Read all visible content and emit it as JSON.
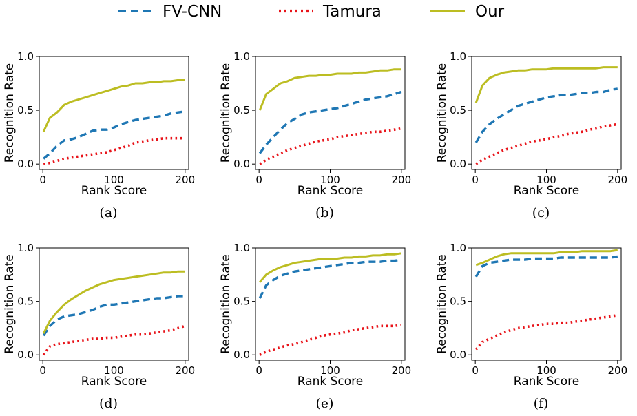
{
  "legend": [
    {
      "label": "FV-CNN",
      "color": "#1f77b4",
      "style": "dashed"
    },
    {
      "label": "Tamura",
      "color": "#e8141a",
      "style": "dotted"
    },
    {
      "label": "Our",
      "color": "#bcbd22",
      "style": "solid"
    }
  ],
  "chart_data": [
    {
      "type": "line",
      "caption": "(a)",
      "xlabel": "Rank Score",
      "ylabel": "Recognition Rate",
      "xlim": [
        -5,
        205
      ],
      "ylim": [
        -0.05,
        1.0
      ],
      "xticks": [
        0,
        100,
        200
      ],
      "yticks": [
        0.0,
        0.5,
        1.0
      ],
      "x": [
        1,
        10,
        20,
        30,
        40,
        50,
        60,
        70,
        80,
        90,
        100,
        110,
        120,
        130,
        140,
        150,
        160,
        170,
        180,
        190,
        200
      ],
      "series": [
        {
          "name": "FV-CNN",
          "values": [
            0.05,
            0.1,
            0.17,
            0.22,
            0.23,
            0.25,
            0.28,
            0.31,
            0.32,
            0.32,
            0.34,
            0.37,
            0.39,
            0.41,
            0.42,
            0.43,
            0.44,
            0.45,
            0.47,
            0.48,
            0.49
          ]
        },
        {
          "name": "Tamura",
          "values": [
            0.0,
            0.01,
            0.03,
            0.05,
            0.06,
            0.07,
            0.08,
            0.09,
            0.1,
            0.11,
            0.13,
            0.15,
            0.17,
            0.2,
            0.21,
            0.22,
            0.23,
            0.24,
            0.24,
            0.24,
            0.24
          ]
        },
        {
          "name": "Our",
          "values": [
            0.3,
            0.43,
            0.48,
            0.55,
            0.58,
            0.6,
            0.62,
            0.64,
            0.66,
            0.68,
            0.7,
            0.72,
            0.73,
            0.75,
            0.75,
            0.76,
            0.76,
            0.77,
            0.77,
            0.78,
            0.78
          ]
        }
      ]
    },
    {
      "type": "line",
      "caption": "(b)",
      "xlabel": "Rank Score",
      "ylabel": "Recognition Rate",
      "xlim": [
        -5,
        205
      ],
      "ylim": [
        -0.05,
        1.0
      ],
      "xticks": [
        0,
        100,
        200
      ],
      "yticks": [
        0.0,
        0.5,
        1.0
      ],
      "x": [
        1,
        10,
        20,
        30,
        40,
        50,
        60,
        70,
        80,
        90,
        100,
        110,
        120,
        130,
        140,
        150,
        160,
        170,
        180,
        190,
        200
      ],
      "series": [
        {
          "name": "FV-CNN",
          "values": [
            0.1,
            0.18,
            0.25,
            0.32,
            0.38,
            0.42,
            0.46,
            0.48,
            0.49,
            0.5,
            0.51,
            0.52,
            0.54,
            0.56,
            0.58,
            0.6,
            0.61,
            0.62,
            0.63,
            0.65,
            0.67
          ]
        },
        {
          "name": "Tamura",
          "values": [
            0.0,
            0.04,
            0.07,
            0.1,
            0.13,
            0.15,
            0.17,
            0.19,
            0.21,
            0.22,
            0.23,
            0.25,
            0.26,
            0.27,
            0.28,
            0.29,
            0.3,
            0.3,
            0.31,
            0.32,
            0.33
          ]
        },
        {
          "name": "Our",
          "values": [
            0.5,
            0.65,
            0.7,
            0.75,
            0.77,
            0.8,
            0.81,
            0.82,
            0.82,
            0.83,
            0.83,
            0.84,
            0.84,
            0.84,
            0.85,
            0.85,
            0.86,
            0.87,
            0.87,
            0.88,
            0.88
          ]
        }
      ]
    },
    {
      "type": "line",
      "caption": "(c)",
      "xlabel": "Rank Score",
      "ylabel": "Recognition Rate",
      "xlim": [
        -5,
        205
      ],
      "ylim": [
        -0.05,
        1.0
      ],
      "xticks": [
        0,
        100,
        200
      ],
      "yticks": [
        0.0,
        0.5,
        1.0
      ],
      "x": [
        1,
        10,
        20,
        30,
        40,
        50,
        60,
        70,
        80,
        90,
        100,
        110,
        120,
        130,
        140,
        150,
        160,
        170,
        180,
        190,
        200
      ],
      "series": [
        {
          "name": "FV-CNN",
          "values": [
            0.2,
            0.3,
            0.37,
            0.42,
            0.46,
            0.5,
            0.54,
            0.56,
            0.58,
            0.6,
            0.62,
            0.63,
            0.64,
            0.64,
            0.65,
            0.66,
            0.66,
            0.67,
            0.67,
            0.69,
            0.7
          ]
        },
        {
          "name": "Tamura",
          "values": [
            0.0,
            0.04,
            0.07,
            0.1,
            0.13,
            0.15,
            0.17,
            0.19,
            0.21,
            0.22,
            0.23,
            0.25,
            0.26,
            0.28,
            0.29,
            0.3,
            0.32,
            0.33,
            0.35,
            0.36,
            0.37
          ]
        },
        {
          "name": "Our",
          "values": [
            0.57,
            0.73,
            0.8,
            0.83,
            0.85,
            0.86,
            0.87,
            0.87,
            0.88,
            0.88,
            0.88,
            0.89,
            0.89,
            0.89,
            0.89,
            0.89,
            0.89,
            0.89,
            0.9,
            0.9,
            0.9
          ]
        }
      ]
    },
    {
      "type": "line",
      "caption": "(d)",
      "xlabel": "Rank Score",
      "ylabel": "Recognition Rate",
      "xlim": [
        -5,
        205
      ],
      "ylim": [
        -0.05,
        1.0
      ],
      "xticks": [
        0,
        100,
        200
      ],
      "yticks": [
        0.0,
        0.5,
        1.0
      ],
      "x": [
        1,
        10,
        20,
        30,
        40,
        50,
        60,
        70,
        80,
        90,
        100,
        110,
        120,
        130,
        140,
        150,
        160,
        170,
        180,
        190,
        200
      ],
      "series": [
        {
          "name": "FV-CNN",
          "values": [
            0.18,
            0.27,
            0.33,
            0.36,
            0.37,
            0.38,
            0.4,
            0.42,
            0.45,
            0.47,
            0.47,
            0.48,
            0.49,
            0.5,
            0.51,
            0.52,
            0.53,
            0.53,
            0.54,
            0.55,
            0.55
          ]
        },
        {
          "name": "Tamura",
          "values": [
            0.0,
            0.08,
            0.1,
            0.11,
            0.12,
            0.13,
            0.14,
            0.15,
            0.15,
            0.16,
            0.16,
            0.17,
            0.18,
            0.19,
            0.19,
            0.2,
            0.21,
            0.22,
            0.23,
            0.25,
            0.27
          ]
        },
        {
          "name": "Our",
          "values": [
            0.2,
            0.32,
            0.4,
            0.47,
            0.52,
            0.56,
            0.6,
            0.63,
            0.66,
            0.68,
            0.7,
            0.71,
            0.72,
            0.73,
            0.74,
            0.75,
            0.76,
            0.77,
            0.77,
            0.78,
            0.78
          ]
        }
      ]
    },
    {
      "type": "line",
      "caption": "(e)",
      "xlabel": "Rank Score",
      "ylabel": "Recognition Rate",
      "xlim": [
        -5,
        205
      ],
      "ylim": [
        -0.05,
        1.0
      ],
      "xticks": [
        0,
        100,
        200
      ],
      "yticks": [
        0.0,
        0.5,
        1.0
      ],
      "x": [
        1,
        10,
        20,
        30,
        40,
        50,
        60,
        70,
        80,
        90,
        100,
        110,
        120,
        130,
        140,
        150,
        160,
        170,
        180,
        190,
        200
      ],
      "series": [
        {
          "name": "FV-CNN",
          "values": [
            0.53,
            0.65,
            0.7,
            0.74,
            0.76,
            0.78,
            0.79,
            0.8,
            0.81,
            0.82,
            0.83,
            0.84,
            0.85,
            0.86,
            0.86,
            0.87,
            0.87,
            0.87,
            0.88,
            0.88,
            0.89
          ]
        },
        {
          "name": "Tamura",
          "values": [
            0.0,
            0.03,
            0.05,
            0.07,
            0.09,
            0.1,
            0.12,
            0.14,
            0.16,
            0.18,
            0.19,
            0.2,
            0.21,
            0.23,
            0.24,
            0.25,
            0.26,
            0.27,
            0.27,
            0.27,
            0.28
          ]
        },
        {
          "name": "Our",
          "values": [
            0.68,
            0.75,
            0.79,
            0.82,
            0.84,
            0.86,
            0.87,
            0.88,
            0.89,
            0.9,
            0.9,
            0.9,
            0.91,
            0.91,
            0.92,
            0.92,
            0.93,
            0.93,
            0.94,
            0.94,
            0.95
          ]
        }
      ]
    },
    {
      "type": "line",
      "caption": "(f)",
      "xlabel": "Rank Score",
      "ylabel": "Recognition Rate",
      "xlim": [
        -5,
        205
      ],
      "ylim": [
        -0.05,
        1.0
      ],
      "xticks": [
        0,
        100,
        200
      ],
      "yticks": [
        0.0,
        0.5,
        1.0
      ],
      "x": [
        1,
        10,
        20,
        30,
        40,
        50,
        60,
        70,
        80,
        90,
        100,
        110,
        120,
        130,
        140,
        150,
        160,
        170,
        180,
        190,
        200
      ],
      "series": [
        {
          "name": "FV-CNN",
          "values": [
            0.73,
            0.83,
            0.86,
            0.87,
            0.88,
            0.89,
            0.89,
            0.89,
            0.9,
            0.9,
            0.9,
            0.9,
            0.91,
            0.91,
            0.91,
            0.91,
            0.91,
            0.91,
            0.91,
            0.91,
            0.92
          ]
        },
        {
          "name": "Tamura",
          "values": [
            0.05,
            0.12,
            0.15,
            0.18,
            0.21,
            0.23,
            0.25,
            0.26,
            0.27,
            0.28,
            0.29,
            0.29,
            0.3,
            0.3,
            0.31,
            0.32,
            0.33,
            0.34,
            0.35,
            0.36,
            0.37
          ]
        },
        {
          "name": "Our",
          "values": [
            0.84,
            0.86,
            0.89,
            0.92,
            0.94,
            0.95,
            0.95,
            0.95,
            0.95,
            0.95,
            0.95,
            0.95,
            0.96,
            0.96,
            0.96,
            0.97,
            0.97,
            0.97,
            0.97,
            0.97,
            0.98
          ]
        }
      ]
    }
  ]
}
